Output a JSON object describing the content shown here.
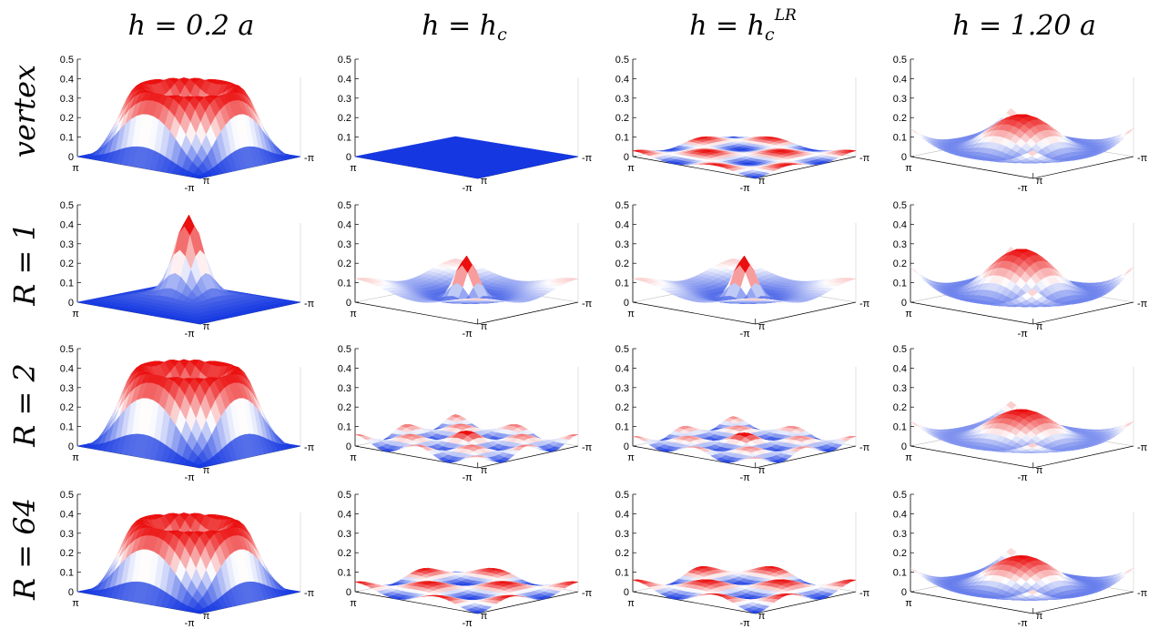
{
  "chart_data": {
    "type": "surface3d-grid",
    "column_titles": [
      {
        "main": "h = 0.2 a",
        "sup": ""
      },
      {
        "main": "h = h",
        "sub": "c"
      },
      {
        "main": "h = h",
        "sub": "c",
        "sup": "LR"
      },
      {
        "main": "h = 1.20 a",
        "sup": ""
      }
    ],
    "row_labels": [
      "vertex",
      "R = 1",
      "R = 2",
      "R = 64"
    ],
    "z_ticks": [
      "0",
      "0.1",
      "0.2",
      "0.3",
      "0.4",
      "0.5"
    ],
    "zlim": [
      0,
      0.5
    ],
    "axis_tick_labels": {
      "left": "π",
      "right": "-π",
      "front_left": "-π",
      "front_right": "π"
    },
    "colormap": {
      "low": "#0033dd",
      "mid": "#ffffff",
      "high": "#ee0000"
    },
    "panels": [
      [
        {
          "shape": "dip",
          "peak_corner": 0.4,
          "peak_edge": 0.36,
          "center": 0.0
        },
        {
          "shape": "flat",
          "value": 0.0
        },
        {
          "shape": "checker",
          "amp": 0.03
        },
        {
          "shape": "wave",
          "peak_center": 0.25,
          "edge": 0.18,
          "trough": 0.0
        }
      ],
      [
        {
          "shape": "spike",
          "center": 0.37,
          "edge": 0.0
        },
        {
          "shape": "wave_spike",
          "center": 0.24,
          "edge": 0.12,
          "trough": 0.0
        },
        {
          "shape": "wave_spike",
          "center": 0.24,
          "edge": 0.12,
          "trough": 0.0
        },
        {
          "shape": "wave",
          "peak_center": 0.32,
          "edge": 0.22,
          "trough": 0.0
        }
      ],
      [
        {
          "shape": "dip",
          "peak_corner": 0.44,
          "peak_edge": 0.4,
          "center": 0.0
        },
        {
          "shape": "ripple",
          "amp": 0.06
        },
        {
          "shape": "ripple",
          "amp": 0.05
        },
        {
          "shape": "wave",
          "peak_center": 0.23,
          "edge": 0.15,
          "trough": 0.02
        }
      ],
      [
        {
          "shape": "dip",
          "peak_corner": 0.4,
          "peak_edge": 0.36,
          "center": 0.0
        },
        {
          "shape": "checker",
          "amp": 0.05
        },
        {
          "shape": "checker",
          "amp": 0.06
        },
        {
          "shape": "wave",
          "peak_center": 0.22,
          "edge": 0.14,
          "trough": 0.0
        }
      ]
    ]
  }
}
